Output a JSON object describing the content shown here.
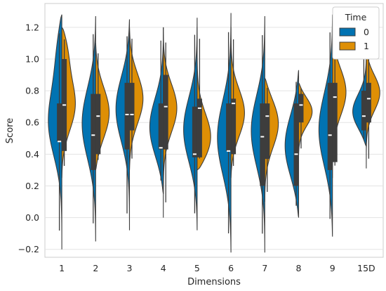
{
  "chart_data": {
    "type": "violin",
    "title": "",
    "xlabel": "Dimensions",
    "ylabel": "Score",
    "categories": [
      "1",
      "2",
      "3",
      "4",
      "5",
      "6",
      "7",
      "8",
      "9",
      "15D"
    ],
    "ylim": [
      -0.25,
      1.35
    ],
    "yticks": [
      -0.2,
      0.0,
      0.2,
      0.4,
      0.6,
      0.8,
      1.0,
      1.2
    ],
    "ytick_labels": [
      "−0.2",
      "0.0",
      "0.2",
      "0.4",
      "0.6",
      "0.8",
      "1.0",
      "1.2"
    ],
    "grid": true,
    "split": true,
    "legend": {
      "title": "Time",
      "position": "top-right"
    },
    "series": [
      {
        "name": "0",
        "color": "#0173b2",
        "violins": [
          {
            "min": -0.2,
            "max": 1.28,
            "q1": 0.48,
            "median": 0.48,
            "q3": 0.72,
            "modes": [
              [
                0.6,
                1.0
              ],
              [
                1.1,
                0.55
              ]
            ],
            "spread": 0.22
          },
          {
            "min": -0.15,
            "max": 1.27,
            "q1": 0.3,
            "median": 0.52,
            "q3": 0.78,
            "modes": [
              [
                0.6,
                1.0
              ]
            ],
            "spread": 0.24
          },
          {
            "min": -0.08,
            "max": 1.25,
            "q1": 0.43,
            "median": 0.65,
            "q3": 0.85,
            "modes": [
              [
                0.7,
                1.0
              ]
            ],
            "spread": 0.22
          },
          {
            "min": 0.15,
            "max": 1.2,
            "q1": 0.43,
            "median": 0.44,
            "q3": 0.72,
            "modes": [
              [
                0.55,
                1.0
              ]
            ],
            "spread": 0.2
          },
          {
            "min": -0.08,
            "max": 1.26,
            "q1": 0.38,
            "median": 0.4,
            "q3": 0.7,
            "modes": [
              [
                0.55,
                1.0
              ]
            ],
            "spread": 0.22
          },
          {
            "min": -0.22,
            "max": 1.29,
            "q1": 0.42,
            "median": 0.42,
            "q3": 0.72,
            "modes": [
              [
                0.5,
                1.0
              ]
            ],
            "spread": 0.25
          },
          {
            "min": -0.22,
            "max": 1.27,
            "q1": 0.2,
            "median": 0.51,
            "q3": 0.72,
            "modes": [
              [
                0.55,
                1.0
              ]
            ],
            "spread": 0.24
          },
          {
            "min": 0.0,
            "max": 0.93,
            "q1": 0.2,
            "median": 0.4,
            "q3": 0.72,
            "modes": [
              [
                0.45,
                1.0
              ]
            ],
            "spread": 0.22
          },
          {
            "min": -0.12,
            "max": 1.28,
            "q1": 0.3,
            "median": 0.52,
            "q3": 0.85,
            "modes": [
              [
                0.55,
                1.0
              ]
            ],
            "spread": 0.25
          },
          {
            "min": 0.45,
            "max": 1.05,
            "q1": 0.55,
            "median": 0.64,
            "q3": 0.8,
            "modes": [
              [
                0.65,
                1.0
              ]
            ],
            "spread": 0.12
          }
        ]
      },
      {
        "name": "1",
        "color": "#de8f05",
        "violins": [
          {
            "min": 0.25,
            "max": 1.2,
            "q1": 0.42,
            "median": 0.71,
            "q3": 1.0,
            "modes": [
              [
                0.7,
                0.85
              ],
              [
                1.1,
                0.55
              ]
            ],
            "spread": 0.17
          },
          {
            "min": 0.3,
            "max": 1.1,
            "q1": 0.4,
            "median": 0.64,
            "q3": 0.78,
            "modes": [
              [
                0.65,
                1.0
              ]
            ],
            "spread": 0.18
          },
          {
            "min": 0.3,
            "max": 1.2,
            "q1": 0.55,
            "median": 0.65,
            "q3": 0.85,
            "modes": [
              [
                0.75,
                1.0
              ]
            ],
            "spread": 0.17
          },
          {
            "min": 0.0,
            "max": 1.2,
            "q1": 0.43,
            "median": 0.7,
            "q3": 0.9,
            "modes": [
              [
                0.7,
                1.0
              ]
            ],
            "spread": 0.16
          },
          {
            "min": 0.3,
            "max": 1.2,
            "q1": 0.38,
            "median": 0.69,
            "q3": 0.75,
            "modes": [
              [
                0.45,
                1.0
              ]
            ],
            "spread": 0.17
          },
          {
            "min": 0.25,
            "max": 1.2,
            "q1": 0.4,
            "median": 0.72,
            "q3": 0.75,
            "modes": [
              [
                0.65,
                1.0
              ]
            ],
            "spread": 0.16
          },
          {
            "min": 0.1,
            "max": 0.88,
            "q1": 0.37,
            "median": 0.64,
            "q3": 0.72,
            "modes": [
              [
                0.62,
                1.0
              ]
            ],
            "spread": 0.17
          },
          {
            "min": 0.4,
            "max": 0.85,
            "q1": 0.6,
            "median": 0.71,
            "q3": 0.78,
            "modes": [
              [
                0.68,
                1.0
              ]
            ],
            "spread": 0.1
          },
          {
            "min": 0.25,
            "max": 1.22,
            "q1": 0.35,
            "median": 0.76,
            "q3": 0.85,
            "modes": [
              [
                0.8,
                1.0
              ]
            ],
            "spread": 0.16
          },
          {
            "min": 0.31,
            "max": 1.08,
            "q1": 0.6,
            "median": 0.75,
            "q3": 0.85,
            "modes": [
              [
                0.8,
                1.0
              ]
            ],
            "spread": 0.12
          }
        ]
      }
    ]
  }
}
